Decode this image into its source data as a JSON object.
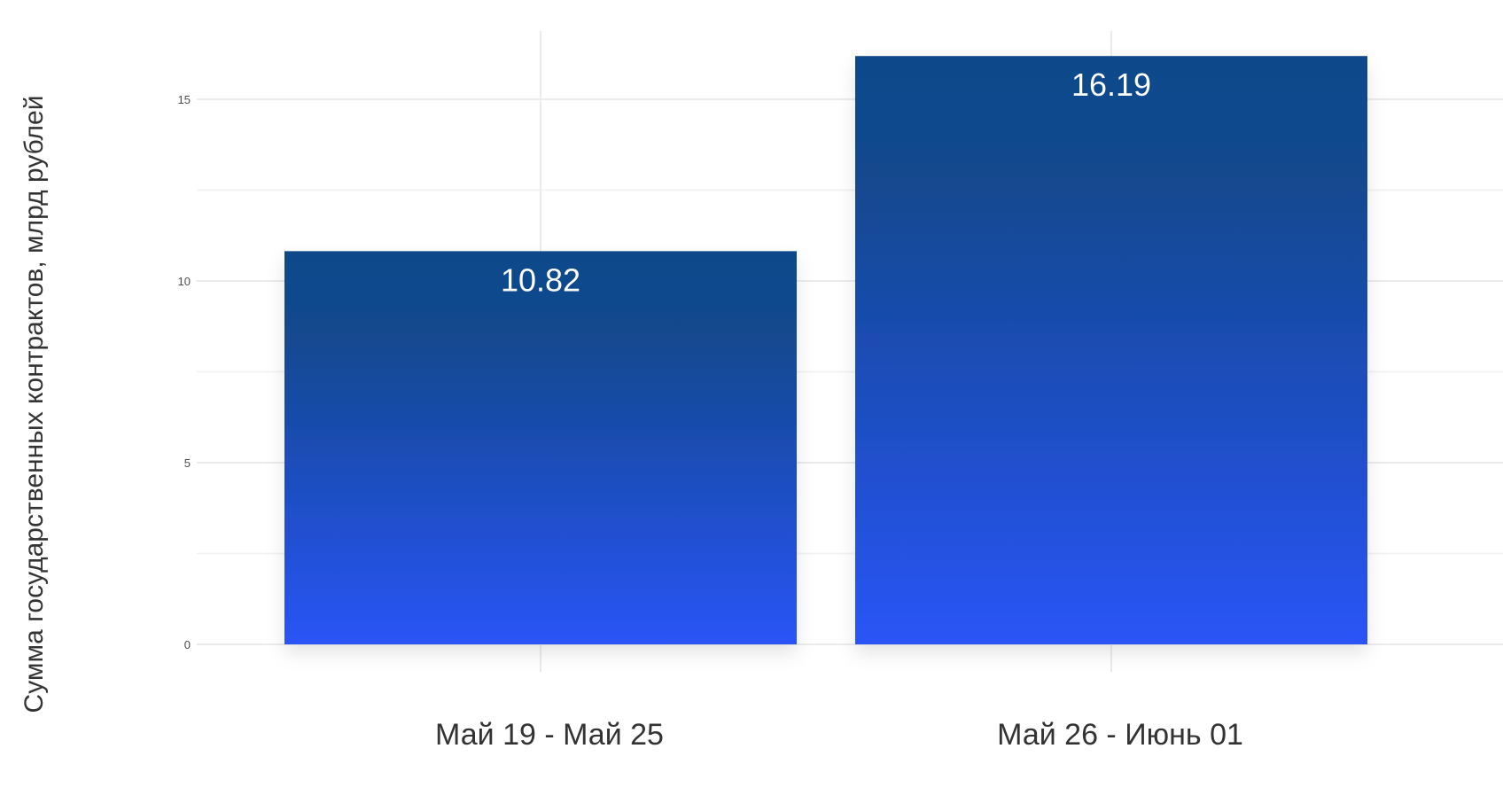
{
  "chart_data": {
    "type": "bar",
    "categories": [
      "Май 19 - Май 25",
      "Май 26 - Июнь 01"
    ],
    "values": [
      10.82,
      16.19
    ],
    "data_labels": [
      "10.82",
      "16.19"
    ],
    "title": "",
    "xlabel": "",
    "ylabel": "Сумма государственных контрактов, млрд рублей",
    "ylim": [
      0,
      16.3
    ],
    "yticks": [
      0,
      5,
      10,
      15
    ],
    "ytick_labels": [
      "0",
      "5",
      "10",
      "15"
    ],
    "grid": true,
    "legend": "none",
    "colors": {
      "bar_top": "#104a8a",
      "bar_bottom": "#2a54f6",
      "label": "#ffffff"
    }
  }
}
